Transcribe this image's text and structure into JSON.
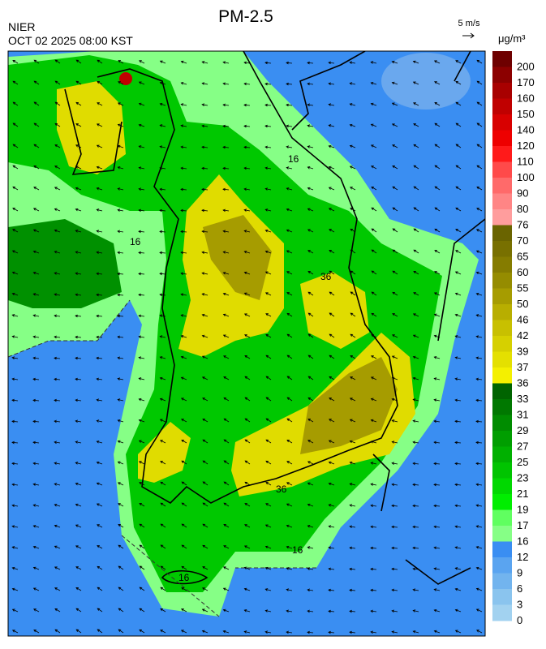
{
  "header": {
    "title": "PM-2.5",
    "agency": "NIER",
    "datetime": "OCT 02 2025 08:00 KST",
    "wind_scale": "5 m/s",
    "unit": "μg/m³"
  },
  "colorbar": [
    {
      "label": "200",
      "color": "#6e0000"
    },
    {
      "label": "170",
      "color": "#8c0000"
    },
    {
      "label": "160",
      "color": "#a80000"
    },
    {
      "label": "150",
      "color": "#c00000"
    },
    {
      "label": "140",
      "color": "#d80000"
    },
    {
      "label": "120",
      "color": "#ee0000"
    },
    {
      "label": "110",
      "color": "#ff1a1a"
    },
    {
      "label": "100",
      "color": "#ff4a4a"
    },
    {
      "label": "90",
      "color": "#ff6a6a"
    },
    {
      "label": "80",
      "color": "#ff8585"
    },
    {
      "label": "76",
      "color": "#ff9d9d"
    },
    {
      "label": "70",
      "color": "#6a6400"
    },
    {
      "label": "65",
      "color": "#787000"
    },
    {
      "label": "60",
      "color": "#857c00"
    },
    {
      "label": "55",
      "color": "#958c00"
    },
    {
      "label": "50",
      "color": "#a69c00"
    },
    {
      "label": "46",
      "color": "#b8ae00"
    },
    {
      "label": "42",
      "color": "#c8c000"
    },
    {
      "label": "39",
      "color": "#d6d000"
    },
    {
      "label": "37",
      "color": "#e4e000"
    },
    {
      "label": "36",
      "color": "#f4f000"
    },
    {
      "label": "33",
      "color": "#006400"
    },
    {
      "label": "31",
      "color": "#007800"
    },
    {
      "label": "29",
      "color": "#008c00"
    },
    {
      "label": "27",
      "color": "#009e00"
    },
    {
      "label": "25",
      "color": "#00b000"
    },
    {
      "label": "23",
      "color": "#00c400"
    },
    {
      "label": "21",
      "color": "#00d800"
    },
    {
      "label": "19",
      "color": "#00ee00"
    },
    {
      "label": "17",
      "color": "#60ff60"
    },
    {
      "label": "16",
      "color": "#86ff86"
    },
    {
      "label": "12",
      "color": "#3a8ef2"
    },
    {
      "label": "9",
      "color": "#5aa4f0"
    },
    {
      "label": "6",
      "color": "#72b4ee"
    },
    {
      "label": "3",
      "color": "#8ac4ee"
    },
    {
      "label": "0",
      "color": "#a2d2f0"
    }
  ],
  "contour_labels": [
    "16",
    "36"
  ]
}
